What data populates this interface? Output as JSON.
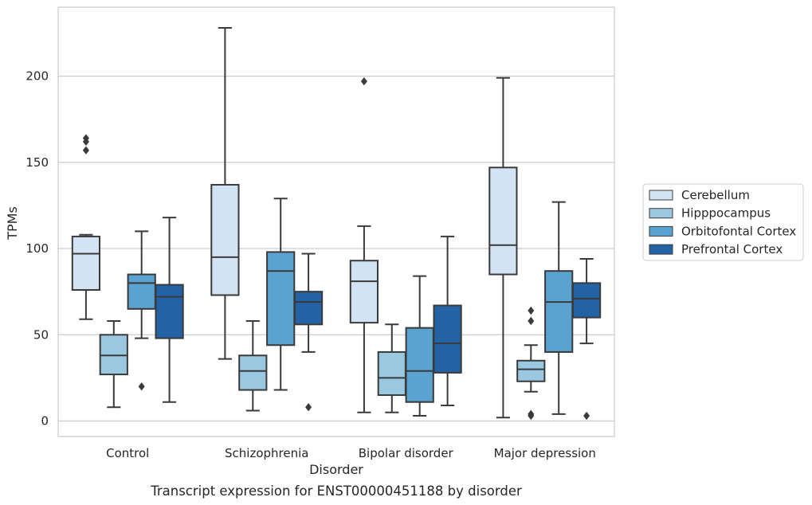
{
  "chart_data": {
    "type": "box",
    "caption": "Transcript expression for ENST00000451188 by disorder",
    "xlabel": "Disorder",
    "ylabel": "TPMs",
    "ylim": [
      -9,
      240
    ],
    "yticks": [
      0,
      50,
      100,
      150,
      200
    ],
    "grid": "horizontal",
    "legend_position": "right",
    "categories": [
      "Control",
      "Schizophrenia",
      "Bipolar disorder",
      "Major depression"
    ],
    "series": [
      {
        "name": "Cerebellum",
        "color": "#d2e3f3",
        "boxes": [
          {
            "whislo": 59,
            "q1": 76,
            "med": 97,
            "q3": 107,
            "whishi": 108,
            "fliers": [
              157,
              162,
              164
            ]
          },
          {
            "whislo": 36,
            "q1": 73,
            "med": 95,
            "q3": 137,
            "whishi": 228,
            "fliers": []
          },
          {
            "whislo": 5,
            "q1": 57,
            "med": 81,
            "q3": 93,
            "whishi": 113,
            "fliers": [
              197
            ]
          },
          {
            "whislo": 2,
            "q1": 85,
            "med": 102,
            "q3": 147,
            "whishi": 199,
            "fliers": []
          }
        ]
      },
      {
        "name": "Hipppocampus",
        "color": "#9ac8e0",
        "boxes": [
          {
            "whislo": 8,
            "q1": 27,
            "med": 38,
            "q3": 50,
            "whishi": 58,
            "fliers": []
          },
          {
            "whislo": 6,
            "q1": 18,
            "med": 29,
            "q3": 38,
            "whishi": 58,
            "fliers": []
          },
          {
            "whislo": 5,
            "q1": 15,
            "med": 25,
            "q3": 40,
            "whishi": 56,
            "fliers": []
          },
          {
            "whislo": 17,
            "q1": 23,
            "med": 30,
            "q3": 35,
            "whishi": 44,
            "fliers": [
              3,
              4,
              58,
              64
            ]
          }
        ]
      },
      {
        "name": "Orbitofontal Cortex",
        "color": "#5aa2cf",
        "boxes": [
          {
            "whislo": 48,
            "q1": 65,
            "med": 80,
            "q3": 85,
            "whishi": 110,
            "fliers": [
              20
            ]
          },
          {
            "whislo": 18,
            "q1": 44,
            "med": 87,
            "q3": 98,
            "whishi": 129,
            "fliers": []
          },
          {
            "whislo": 3,
            "q1": 11,
            "med": 29,
            "q3": 54,
            "whishi": 84,
            "fliers": []
          },
          {
            "whislo": 4,
            "q1": 40,
            "med": 69,
            "q3": 87,
            "whishi": 127,
            "fliers": []
          }
        ]
      },
      {
        "name": "Prefrontal Cortex",
        "color": "#2363a5",
        "boxes": [
          {
            "whislo": 11,
            "q1": 48,
            "med": 72,
            "q3": 79,
            "whishi": 118,
            "fliers": []
          },
          {
            "whislo": 40,
            "q1": 56,
            "med": 69,
            "q3": 75,
            "whishi": 97,
            "fliers": [
              8
            ]
          },
          {
            "whislo": 9,
            "q1": 28,
            "med": 45,
            "q3": 67,
            "whishi": 107,
            "fliers": []
          },
          {
            "whislo": 45,
            "q1": 60,
            "med": 71,
            "q3": 80,
            "whishi": 94,
            "fliers": [
              3
            ]
          }
        ]
      }
    ]
  }
}
